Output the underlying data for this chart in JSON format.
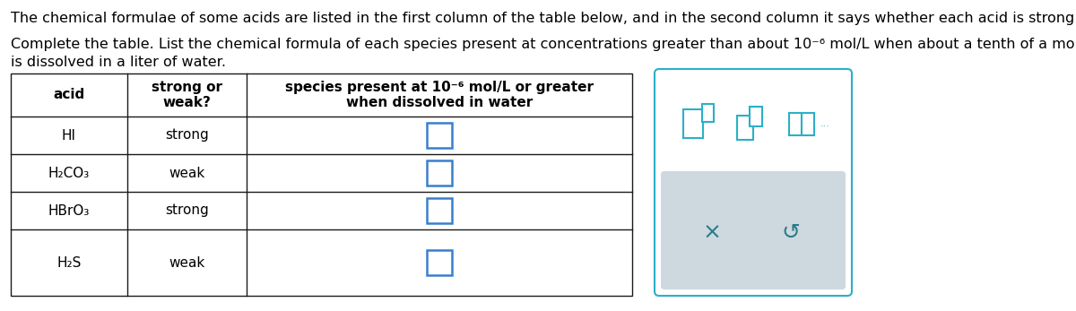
{
  "paragraph1": "The chemical formulae of some acids are listed in the first column of the table below, and in the second column it says whether each acid is strong or weak.",
  "paragraph2_line1": "Complete the table. List the chemical formula of each species present at concentrations greater than about 10⁻⁶ mol/L when about a tenth of a mole of the acid",
  "paragraph2_line2": "is dissolved in a liter of water.",
  "col1_header": "acid",
  "col2_header": "strong or\nweak?",
  "col3_header": "species present at 10⁻⁶ mol/L or greater\nwhen dissolved in water",
  "acids": [
    "HI",
    "H₂CO₃",
    "HBrO₃",
    "H₂S"
  ],
  "strengths": [
    "strong",
    "weak",
    "strong",
    "weak"
  ],
  "table_border_color": "#1a1a1a",
  "input_box_color": "#3a7fcc",
  "icon_color": "#2ab0c8",
  "toolbar_border_color": "#2ab0c8",
  "toolbar_bg_bottom": "#d8e4ea",
  "action_text_color": "#2a7a8a",
  "text_color": "#000000",
  "font_size_para": 11.5,
  "font_size_table": 11.0,
  "font_size_header": 11.0
}
